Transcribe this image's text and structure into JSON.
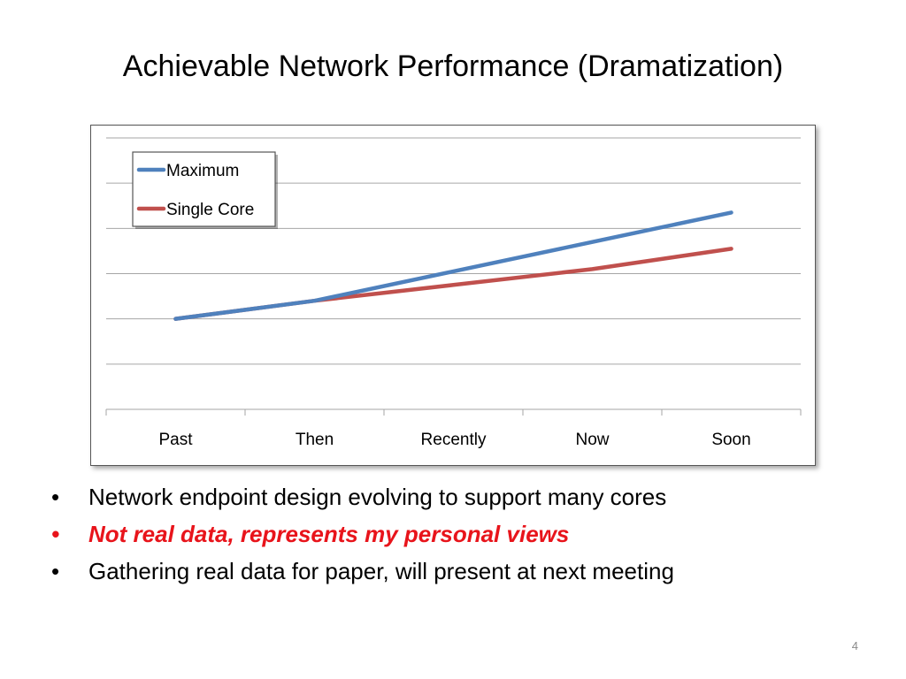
{
  "slide": {
    "title": "Achievable Network Performance (Dramatization)",
    "page_number": "4"
  },
  "bullets": [
    {
      "text": "Network endpoint design evolving to support many cores",
      "color": "#000000",
      "emphasis": false
    },
    {
      "text": "Not real data, represents my personal views",
      "color": "#e8141b",
      "emphasis": true
    },
    {
      "text": "Gathering real data for paper, will present at next meeting",
      "color": "#000000",
      "emphasis": false
    }
  ],
  "bullet_glyph": "•",
  "chart_data": {
    "type": "line",
    "categories": [
      "Past",
      "Then",
      "Recently",
      "Now",
      "Soon"
    ],
    "series": [
      {
        "name": "Maximum",
        "color": "#4f81bd",
        "values": [
          2,
          2.4,
          3.05,
          3.7,
          4.35
        ]
      },
      {
        "name": "Single Core",
        "color": "#c0504d",
        "values": [
          2,
          2.4,
          2.75,
          3.1,
          3.55
        ]
      }
    ],
    "ylim": [
      0,
      6
    ],
    "y_tick_step": 1,
    "y_tick_labels_shown": false,
    "grid": true,
    "legend_position": "top-left, inside plot"
  }
}
